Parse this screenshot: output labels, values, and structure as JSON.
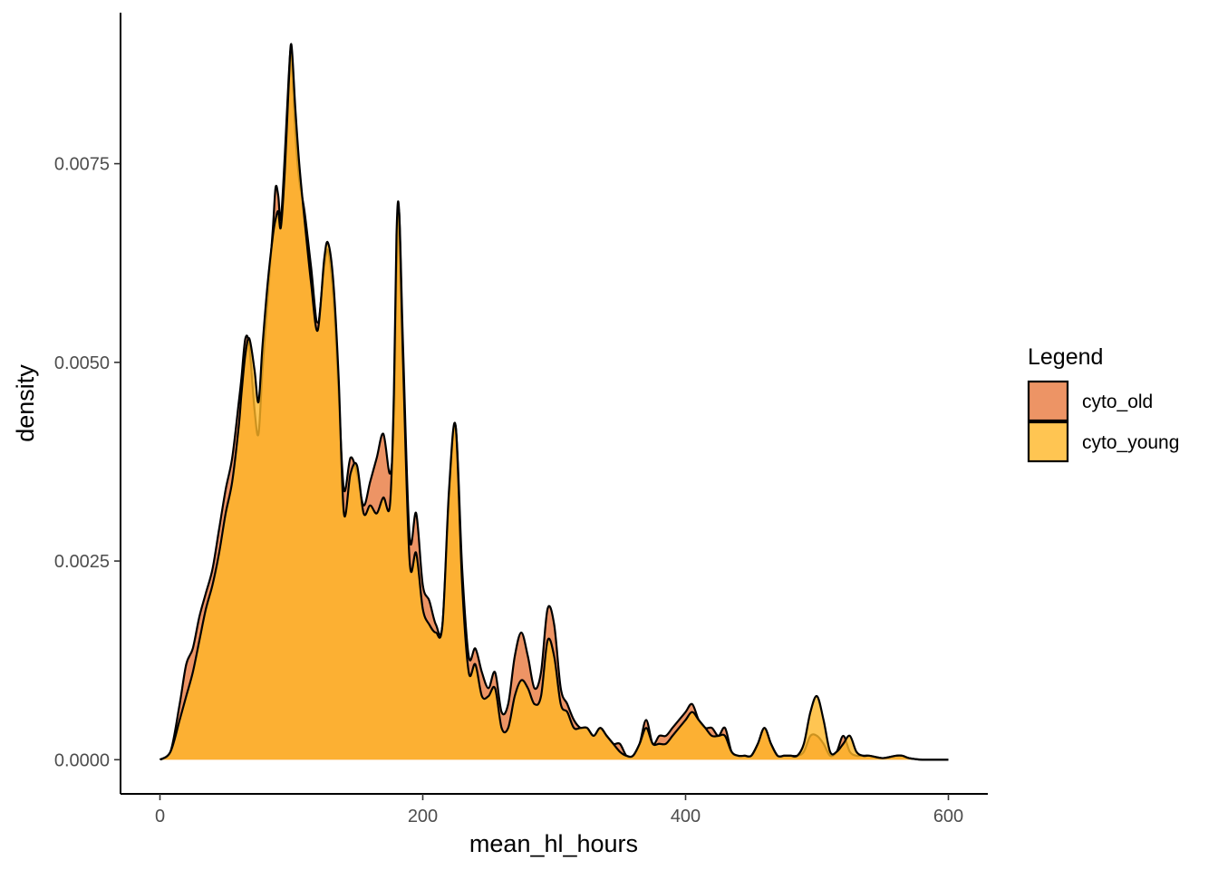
{
  "chart_data": {
    "type": "area",
    "xlabel": "mean_hl_hours",
    "ylabel": "density",
    "xlim": [
      -30,
      630
    ],
    "ylim": [
      -0.00043,
      0.0094
    ],
    "xticks": [
      0,
      200,
      400,
      600
    ],
    "xtick_labels": [
      "0",
      "200",
      "400",
      "600"
    ],
    "yticks": [
      0,
      0.0025,
      0.005,
      0.0075
    ],
    "ytick_labels": [
      "0.0000",
      "0.0025",
      "0.0050",
      "0.0075"
    ],
    "grid": false,
    "legend": {
      "title": "Legend",
      "position": "right",
      "entries": [
        "cyto_old",
        "cyto_young"
      ]
    },
    "series": [
      {
        "name": "cyto_old",
        "color": "#E8793F",
        "alpha": 0.8,
        "x": [
          0,
          8,
          15,
          20,
          25,
          30,
          35,
          40,
          45,
          50,
          55,
          60,
          62,
          65,
          68,
          72,
          75,
          78,
          82,
          86,
          88,
          90,
          92,
          95,
          98,
          100,
          103,
          106,
          110,
          115,
          120,
          125,
          128,
          132,
          136,
          140,
          145,
          150,
          155,
          160,
          165,
          170,
          175,
          178,
          180,
          182,
          185,
          190,
          195,
          200,
          205,
          210,
          215,
          220,
          225,
          230,
          235,
          240,
          245,
          250,
          255,
          260,
          265,
          270,
          275,
          280,
          285,
          290,
          295,
          300,
          305,
          310,
          315,
          320,
          325,
          330,
          335,
          340,
          345,
          350,
          355,
          360,
          365,
          370,
          375,
          380,
          385,
          390,
          395,
          400,
          405,
          410,
          415,
          420,
          425,
          430,
          435,
          440,
          445,
          450,
          455,
          460,
          465,
          470,
          475,
          480,
          485,
          490,
          495,
          500,
          505,
          510,
          515,
          520,
          525,
          530,
          535,
          540,
          550,
          560,
          565,
          570,
          580,
          590,
          600
        ],
        "y": [
          0.0,
          0.0001,
          0.0007,
          0.0012,
          0.0014,
          0.0018,
          0.0021,
          0.0024,
          0.0029,
          0.0034,
          0.0038,
          0.0045,
          0.0048,
          0.0053,
          0.0052,
          0.0044,
          0.0041,
          0.0049,
          0.0058,
          0.0067,
          0.0072,
          0.0071,
          0.0068,
          0.0076,
          0.0086,
          0.0089,
          0.0079,
          0.0073,
          0.0069,
          0.0062,
          0.0055,
          0.0062,
          0.0064,
          0.0058,
          0.0046,
          0.0034,
          0.0038,
          0.0036,
          0.0032,
          0.0035,
          0.0038,
          0.0041,
          0.0036,
          0.0042,
          0.0061,
          0.0069,
          0.0052,
          0.0028,
          0.0031,
          0.0022,
          0.002,
          0.0017,
          0.0017,
          0.0033,
          0.0042,
          0.0024,
          0.0013,
          0.0014,
          0.0011,
          0.0009,
          0.0011,
          0.0006,
          0.0007,
          0.0013,
          0.0016,
          0.0013,
          0.0009,
          0.0011,
          0.0019,
          0.0017,
          0.0009,
          0.0007,
          0.0005,
          0.0004,
          0.0004,
          0.0003,
          0.0004,
          0.0003,
          0.0002,
          0.0002,
          5e-05,
          5e-05,
          0.0002,
          0.0005,
          0.0002,
          0.0003,
          0.0003,
          0.0004,
          0.0005,
          0.0006,
          0.0007,
          0.0005,
          0.0004,
          0.0004,
          0.0003,
          0.0004,
          0.0001,
          5e-05,
          5e-05,
          5e-05,
          0.0002,
          0.0004,
          0.0002,
          5e-05,
          5e-05,
          5e-05,
          5e-05,
          0.0001,
          0.0003,
          0.0003,
          0.0002,
          5e-05,
          0.0001,
          0.0003,
          0.0001,
          5e-05,
          5e-05,
          5e-05,
          2e-05,
          5e-05,
          5e-05,
          2e-05,
          0.0,
          0.0,
          0.0
        ]
      },
      {
        "name": "cyto_young",
        "color": "#FFB627",
        "alpha": 0.8,
        "x": [
          0,
          8,
          15,
          20,
          25,
          30,
          35,
          40,
          45,
          50,
          55,
          60,
          62,
          65,
          68,
          72,
          75,
          78,
          82,
          86,
          88,
          90,
          92,
          95,
          98,
          100,
          103,
          106,
          110,
          115,
          120,
          125,
          128,
          132,
          136,
          140,
          145,
          150,
          155,
          160,
          165,
          170,
          175,
          178,
          180,
          182,
          185,
          190,
          195,
          200,
          205,
          210,
          215,
          220,
          225,
          230,
          235,
          240,
          245,
          250,
          255,
          260,
          265,
          270,
          275,
          280,
          285,
          290,
          295,
          300,
          305,
          310,
          315,
          320,
          325,
          330,
          335,
          340,
          345,
          350,
          355,
          360,
          365,
          370,
          375,
          380,
          385,
          390,
          395,
          400,
          405,
          410,
          415,
          420,
          425,
          430,
          435,
          440,
          445,
          450,
          455,
          460,
          465,
          470,
          475,
          480,
          485,
          490,
          495,
          500,
          505,
          510,
          515,
          520,
          525,
          530,
          535,
          540,
          550,
          560,
          565,
          570,
          580,
          590,
          600
        ],
        "y": [
          0.0,
          0.0001,
          0.0005,
          0.0008,
          0.0011,
          0.0015,
          0.0019,
          0.0022,
          0.0026,
          0.0031,
          0.0035,
          0.0042,
          0.0046,
          0.0051,
          0.0053,
          0.0049,
          0.0045,
          0.0052,
          0.006,
          0.0066,
          0.0068,
          0.0069,
          0.0067,
          0.0074,
          0.0085,
          0.009,
          0.0082,
          0.0075,
          0.0068,
          0.006,
          0.0054,
          0.0063,
          0.0065,
          0.006,
          0.0048,
          0.0031,
          0.0036,
          0.0037,
          0.0031,
          0.0032,
          0.0031,
          0.0033,
          0.0032,
          0.0046,
          0.0066,
          0.0069,
          0.005,
          0.0025,
          0.0026,
          0.0019,
          0.0017,
          0.0016,
          0.0017,
          0.0034,
          0.0042,
          0.0022,
          0.0011,
          0.0012,
          0.0008,
          0.0008,
          0.0009,
          0.0004,
          0.0004,
          0.0008,
          0.001,
          0.0009,
          0.0007,
          0.0008,
          0.0015,
          0.0013,
          0.0007,
          0.0006,
          0.0004,
          0.0004,
          0.0004,
          0.0003,
          0.0004,
          0.0003,
          0.0002,
          0.0001,
          5e-05,
          5e-05,
          0.0002,
          0.0004,
          0.0002,
          0.0002,
          0.0002,
          0.0003,
          0.0004,
          0.0005,
          0.0006,
          0.0005,
          0.0004,
          0.0003,
          0.0003,
          0.0003,
          0.0001,
          5e-05,
          5e-05,
          5e-05,
          0.0002,
          0.0004,
          0.0002,
          5e-05,
          5e-05,
          5e-05,
          5e-05,
          0.0002,
          0.0006,
          0.0008,
          0.0005,
          0.0001,
          0.0001,
          0.0002,
          0.0003,
          0.0001,
          5e-05,
          5e-05,
          2e-05,
          5e-05,
          5e-05,
          2e-05,
          0.0,
          0.0,
          0.0
        ]
      }
    ]
  }
}
